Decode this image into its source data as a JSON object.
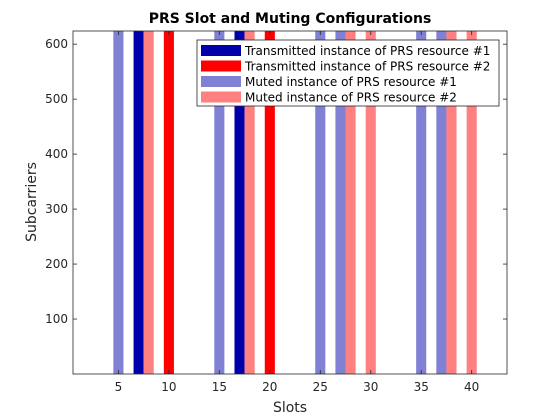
{
  "chart_data": {
    "type": "bar",
    "title": "PRS Slot and Muting Configurations",
    "xlabel": "Slots",
    "ylabel": "Subcarriers",
    "xlim": [
      0.5,
      43.5
    ],
    "ylim": [
      0,
      624
    ],
    "xticks": [
      5,
      10,
      15,
      20,
      25,
      30,
      35,
      40
    ],
    "yticks": [
      100,
      200,
      300,
      400,
      500,
      600
    ],
    "grid": false,
    "legend_position": "top-right",
    "series": [
      {
        "name": "Transmitted instance of PRS resource #1",
        "color": "#0000aa",
        "x": [
          7,
          17
        ]
      },
      {
        "name": "Transmitted instance of PRS resource #2",
        "color": "#ff0000",
        "x": [
          10,
          20
        ]
      },
      {
        "name": "Muted instance of PRS resource #1",
        "color": "#8080d4",
        "x": [
          5,
          15,
          25,
          27,
          35,
          37
        ]
      },
      {
        "name": "Muted instance of PRS resource #2",
        "color": "#ff8080",
        "x": [
          8,
          18,
          28,
          30,
          38,
          40
        ]
      }
    ]
  }
}
